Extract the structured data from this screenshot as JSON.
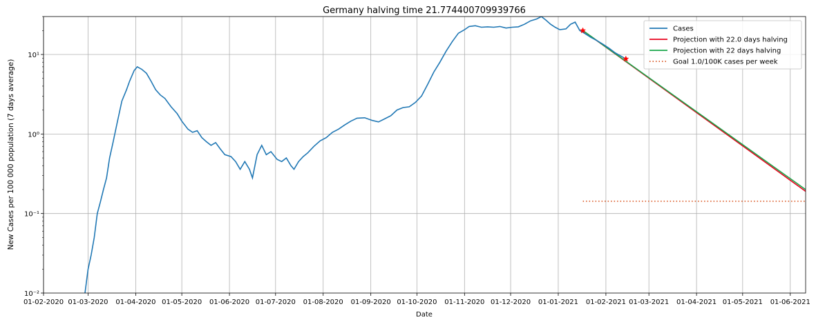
{
  "chart_data": {
    "type": "line",
    "title": "Germany halving time 21.774400709939766",
    "xlabel": "Date",
    "ylabel": "New Cases per 100 000 population (7 days average)",
    "yscale": "log",
    "ylim": [
      0.01,
      30
    ],
    "y_tick_labels": [
      "10⁻²",
      "10⁻¹",
      "10⁰",
      "10¹"
    ],
    "y_tick_values": [
      0.01,
      0.1,
      1,
      10
    ],
    "xlim": [
      "2020-02-01",
      "2021-06-11"
    ],
    "x_tick_labels": [
      "01-02-2020",
      "01-03-2020",
      "01-04-2020",
      "01-05-2020",
      "01-06-2020",
      "01-07-2020",
      "01-08-2020",
      "01-09-2020",
      "01-10-2020",
      "01-11-2020",
      "01-12-2020",
      "01-01-2021",
      "01-02-2021",
      "01-03-2021",
      "01-04-2021",
      "01-05-2021",
      "01-06-2021"
    ],
    "x_tick_dates": [
      "2020-02-01",
      "2020-03-01",
      "2020-04-01",
      "2020-05-01",
      "2020-06-01",
      "2020-07-01",
      "2020-08-01",
      "2020-09-01",
      "2020-10-01",
      "2020-11-01",
      "2020-12-01",
      "2021-01-01",
      "2021-02-01",
      "2021-03-01",
      "2021-04-01",
      "2021-05-01",
      "2021-06-01"
    ],
    "grid": true,
    "legend_position": "top-right",
    "colors": {
      "cases": "#1f77b4",
      "projection_red": "#e8001c",
      "projection_green": "#1aa64a",
      "goal": "#d9531e",
      "marker": "#ff0000"
    },
    "series": [
      {
        "name": "Cases",
        "style": "solid",
        "color": "#1f77b4",
        "points": [
          [
            "2020-02-28",
            0.01
          ],
          [
            "2020-03-01",
            0.02
          ],
          [
            "2020-03-03",
            0.03
          ],
          [
            "2020-03-05",
            0.05
          ],
          [
            "2020-03-07",
            0.1
          ],
          [
            "2020-03-09",
            0.14
          ],
          [
            "2020-03-11",
            0.2
          ],
          [
            "2020-03-13",
            0.28
          ],
          [
            "2020-03-15",
            0.5
          ],
          [
            "2020-03-17",
            0.75
          ],
          [
            "2020-03-20",
            1.4
          ],
          [
            "2020-03-23",
            2.6
          ],
          [
            "2020-03-26",
            3.6
          ],
          [
            "2020-03-28",
            4.6
          ],
          [
            "2020-03-31",
            6.3
          ],
          [
            "2020-04-02",
            7.0
          ],
          [
            "2020-04-05",
            6.5
          ],
          [
            "2020-04-08",
            5.8
          ],
          [
            "2020-04-11",
            4.6
          ],
          [
            "2020-04-14",
            3.6
          ],
          [
            "2020-04-17",
            3.1
          ],
          [
            "2020-04-20",
            2.8
          ],
          [
            "2020-04-24",
            2.2
          ],
          [
            "2020-04-28",
            1.8
          ],
          [
            "2020-05-01",
            1.45
          ],
          [
            "2020-05-05",
            1.15
          ],
          [
            "2020-05-08",
            1.05
          ],
          [
            "2020-05-11",
            1.1
          ],
          [
            "2020-05-14",
            0.9
          ],
          [
            "2020-05-17",
            0.8
          ],
          [
            "2020-05-20",
            0.72
          ],
          [
            "2020-05-23",
            0.78
          ],
          [
            "2020-05-26",
            0.65
          ],
          [
            "2020-05-29",
            0.55
          ],
          [
            "2020-06-02",
            0.52
          ],
          [
            "2020-06-05",
            0.45
          ],
          [
            "2020-06-08",
            0.36
          ],
          [
            "2020-06-11",
            0.45
          ],
          [
            "2020-06-14",
            0.36
          ],
          [
            "2020-06-16",
            0.28
          ],
          [
            "2020-06-19",
            0.55
          ],
          [
            "2020-06-22",
            0.72
          ],
          [
            "2020-06-25",
            0.55
          ],
          [
            "2020-06-28",
            0.6
          ],
          [
            "2020-07-02",
            0.48
          ],
          [
            "2020-07-05",
            0.45
          ],
          [
            "2020-07-08",
            0.5
          ],
          [
            "2020-07-11",
            0.4
          ],
          [
            "2020-07-13",
            0.36
          ],
          [
            "2020-07-16",
            0.45
          ],
          [
            "2020-07-19",
            0.52
          ],
          [
            "2020-07-22",
            0.58
          ],
          [
            "2020-07-26",
            0.7
          ],
          [
            "2020-07-30",
            0.82
          ],
          [
            "2020-08-03",
            0.9
          ],
          [
            "2020-08-07",
            1.05
          ],
          [
            "2020-08-11",
            1.15
          ],
          [
            "2020-08-15",
            1.3
          ],
          [
            "2020-08-19",
            1.45
          ],
          [
            "2020-08-23",
            1.58
          ],
          [
            "2020-08-28",
            1.6
          ],
          [
            "2020-09-02",
            1.48
          ],
          [
            "2020-09-06",
            1.42
          ],
          [
            "2020-09-10",
            1.55
          ],
          [
            "2020-09-14",
            1.7
          ],
          [
            "2020-09-18",
            2.0
          ],
          [
            "2020-09-22",
            2.15
          ],
          [
            "2020-09-26",
            2.2
          ],
          [
            "2020-09-30",
            2.5
          ],
          [
            "2020-10-04",
            3.0
          ],
          [
            "2020-10-08",
            4.2
          ],
          [
            "2020-10-12",
            6.0
          ],
          [
            "2020-10-16",
            8.0
          ],
          [
            "2020-10-20",
            11.0
          ],
          [
            "2020-10-24",
            14.5
          ],
          [
            "2020-10-28",
            18.5
          ],
          [
            "2020-11-01",
            20.5
          ],
          [
            "2020-11-04",
            22.5
          ],
          [
            "2020-11-08",
            23.0
          ],
          [
            "2020-11-12",
            22.0
          ],
          [
            "2020-11-16",
            22.3
          ],
          [
            "2020-11-20",
            22.0
          ],
          [
            "2020-11-24",
            22.5
          ],
          [
            "2020-11-28",
            21.5
          ],
          [
            "2020-12-02",
            22.0
          ],
          [
            "2020-12-06",
            22.3
          ],
          [
            "2020-12-10",
            24.0
          ],
          [
            "2020-12-14",
            26.5
          ],
          [
            "2020-12-18",
            28.0
          ],
          [
            "2020-12-21",
            30.0
          ],
          [
            "2020-12-24",
            27.0
          ],
          [
            "2020-12-27",
            24.0
          ],
          [
            "2020-12-30",
            22.0
          ],
          [
            "2021-01-02",
            20.5
          ],
          [
            "2021-01-06",
            21.0
          ],
          [
            "2021-01-09",
            24.0
          ],
          [
            "2021-01-12",
            25.5
          ],
          [
            "2021-01-15",
            20.0
          ],
          [
            "2021-01-18",
            18.5
          ],
          [
            "2021-01-22",
            16.5
          ],
          [
            "2021-01-26",
            15.0
          ],
          [
            "2021-01-30",
            13.5
          ],
          [
            "2021-02-03",
            12.0
          ],
          [
            "2021-02-07",
            10.5
          ],
          [
            "2021-02-11",
            9.5
          ],
          [
            "2021-02-14",
            8.8
          ]
        ]
      },
      {
        "name": "Projection with 22.0 days halving",
        "style": "solid",
        "color": "#e8001c",
        "points": [
          [
            "2021-01-17",
            20.0
          ],
          [
            "2021-06-11",
            0.19
          ]
        ]
      },
      {
        "name": "Projection with 22 days halving",
        "style": "solid",
        "color": "#1aa64a",
        "points": [
          [
            "2021-01-17",
            20.0
          ],
          [
            "2021-06-11",
            0.2
          ]
        ]
      },
      {
        "name": "Goal 1.0/100K cases per week",
        "style": "dotted",
        "color": "#d9531e",
        "points": [
          [
            "2021-01-17",
            0.143
          ],
          [
            "2021-06-11",
            0.143
          ]
        ]
      }
    ],
    "markers": [
      {
        "date": "2021-01-17",
        "value": 20.0,
        "color": "#ff0000"
      },
      {
        "date": "2021-02-14",
        "value": 8.8,
        "color": "#ff0000"
      }
    ]
  }
}
